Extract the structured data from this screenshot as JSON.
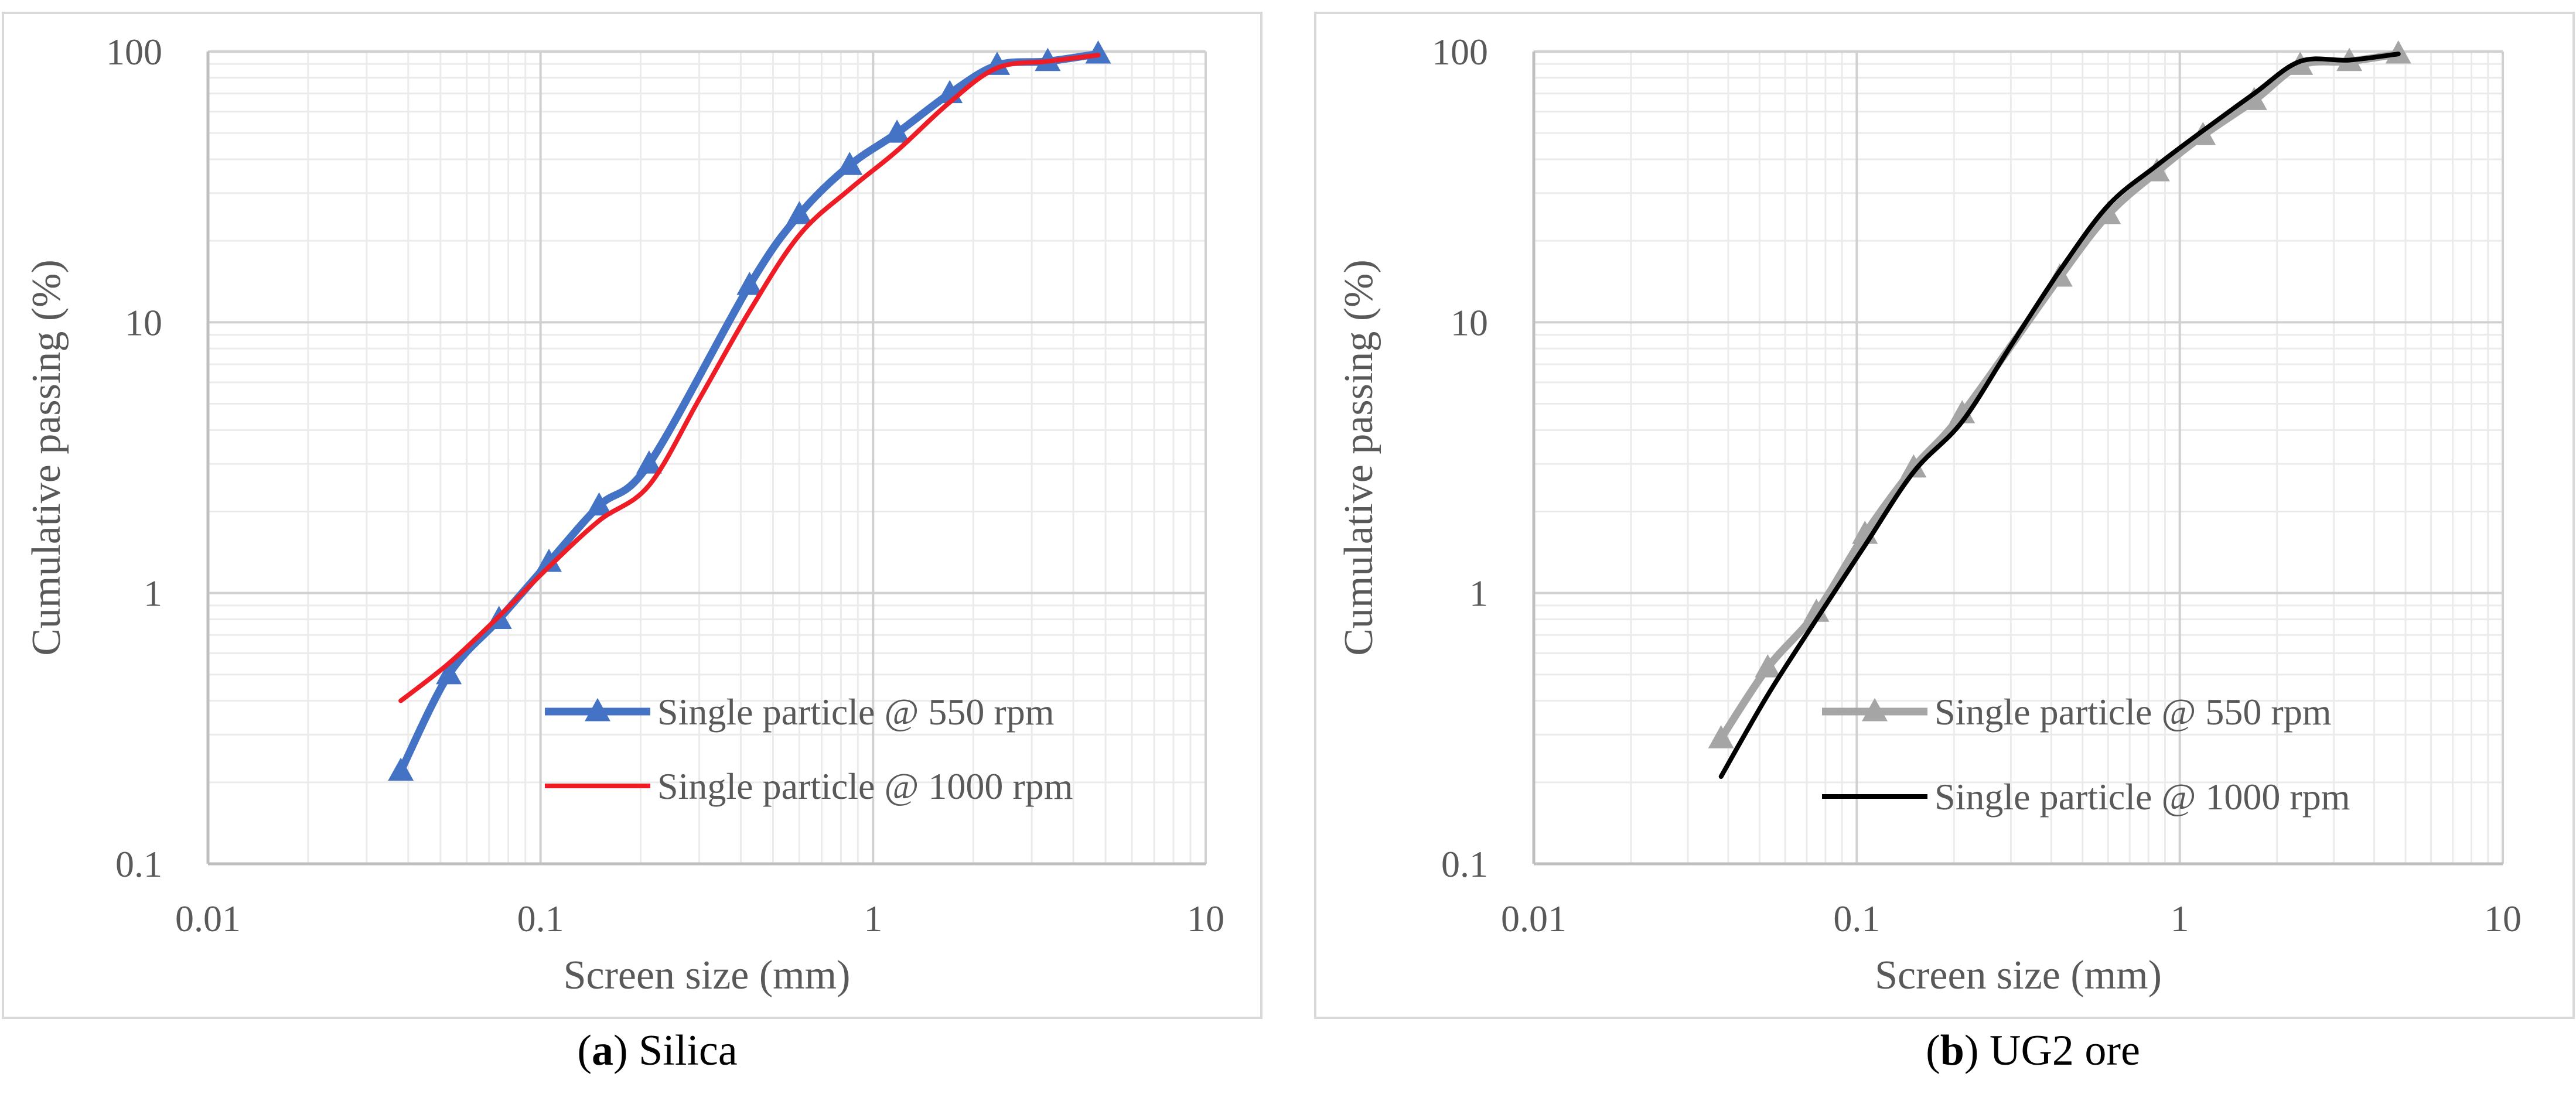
{
  "chart_data": [
    {
      "type": "line",
      "caption": {
        "letter": "a",
        "text": "Silica"
      },
      "xlabel": "Screen size (mm)",
      "ylabel": "Cumulative passing (%)",
      "x_scale": "log",
      "y_scale": "log",
      "xlim": [
        0.01,
        10
      ],
      "ylim": [
        0.1,
        100
      ],
      "x_ticks": [
        "0.01",
        "0.1",
        "1",
        "10"
      ],
      "y_ticks": [
        "0.1",
        "1",
        "10",
        "100"
      ],
      "grid": true,
      "legend_position": "bottom-right",
      "series": [
        {
          "name": "Single particle @ 550 rpm",
          "color": "#4472C4",
          "marker": "triangle",
          "x": [
            0.038,
            0.053,
            0.075,
            0.106,
            0.15,
            0.212,
            0.425,
            0.6,
            0.85,
            1.18,
            1.7,
            2.36,
            3.35,
            4.75
          ],
          "y": [
            0.22,
            0.5,
            0.8,
            1.3,
            2.1,
            3.0,
            13.7,
            25,
            38,
            50,
            70,
            89,
            92,
            98
          ]
        },
        {
          "name": "Single particle @ 1000 rpm",
          "color": "#EE1C25",
          "marker": "none",
          "x": [
            0.038,
            0.053,
            0.075,
            0.106,
            0.15,
            0.212,
            0.3,
            0.425,
            0.6,
            0.85,
            1.18,
            1.7,
            2.36,
            3.35,
            4.75
          ],
          "y": [
            0.4,
            0.55,
            0.82,
            1.25,
            1.85,
            2.5,
            5.2,
            11,
            21,
            31,
            43,
            65,
            87,
            92,
            97
          ]
        }
      ]
    },
    {
      "type": "line",
      "caption": {
        "letter": "b",
        "text": "UG2 ore"
      },
      "xlabel": "Screen size (mm)",
      "ylabel": "Cumulative passing (%)",
      "x_scale": "log",
      "y_scale": "log",
      "xlim": [
        0.01,
        10
      ],
      "ylim": [
        0.1,
        100
      ],
      "x_ticks": [
        "0.01",
        "0.1",
        "1",
        "10"
      ],
      "y_ticks": [
        "0.1",
        "1",
        "10",
        "100"
      ],
      "grid": true,
      "legend_position": "bottom-right",
      "series": [
        {
          "name": "Single particle @ 550 rpm",
          "color": "#A5A5A5",
          "marker": "triangle",
          "x": [
            0.038,
            0.053,
            0.075,
            0.106,
            0.15,
            0.212,
            0.425,
            0.6,
            0.85,
            1.18,
            1.7,
            2.36,
            3.35,
            4.75
          ],
          "y": [
            0.29,
            0.53,
            0.85,
            1.65,
            2.9,
            4.6,
            14.7,
            25,
            36,
            49,
            66,
            89,
            92,
            98
          ]
        },
        {
          "name": "Single particle @ 1000 rpm",
          "color": "#000000",
          "marker": "none",
          "x": [
            0.038,
            0.053,
            0.075,
            0.106,
            0.15,
            0.212,
            0.3,
            0.425,
            0.6,
            0.85,
            1.18,
            1.7,
            2.36,
            3.35,
            4.75
          ],
          "y": [
            0.21,
            0.42,
            0.8,
            1.5,
            2.8,
            4.3,
            8.2,
            15.5,
            27,
            38,
            51,
            70,
            92,
            93,
            98
          ]
        }
      ]
    }
  ]
}
